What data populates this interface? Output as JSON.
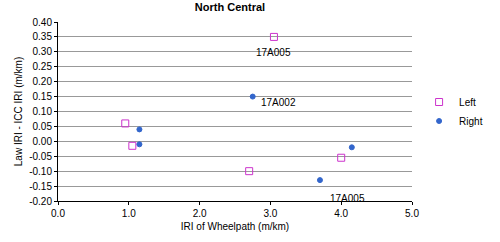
{
  "chart_data": {
    "type": "scatter",
    "title": "North Central",
    "x_label": "IRI of Wheelpath (m/km)",
    "y_label": "Law IRI - ICC IRI (m/km)",
    "xlim": [
      0,
      5
    ],
    "xticks": [
      {
        "value": 0,
        "label": "0.0"
      },
      {
        "value": 1,
        "label": "1.0"
      },
      {
        "value": 2,
        "label": "2.0"
      },
      {
        "value": 3,
        "label": "3.0"
      },
      {
        "value": 4,
        "label": "4.0"
      },
      {
        "value": 5,
        "label": "5.0"
      }
    ],
    "ylim": [
      -0.2,
      0.4
    ],
    "yticks": [
      {
        "value": -0.2,
        "label": "-0.20"
      },
      {
        "value": -0.15,
        "label": "-0.15"
      },
      {
        "value": -0.1,
        "label": "-0.10"
      },
      {
        "value": -0.05,
        "label": "-0.05"
      },
      {
        "value": 0,
        "label": "0.00"
      },
      {
        "value": 0.05,
        "label": "0.05"
      },
      {
        "value": 0.1,
        "label": "0.10"
      },
      {
        "value": 0.15,
        "label": "0.15"
      },
      {
        "value": 0.2,
        "label": "0.20"
      },
      {
        "value": 0.25,
        "label": "0.25"
      },
      {
        "value": 0.3,
        "label": "0.30"
      },
      {
        "value": 0.35,
        "label": "0.35"
      },
      {
        "value": 0.4,
        "label": "0.40"
      }
    ],
    "grid": true,
    "legend": "right",
    "series": [
      {
        "name": "Left",
        "color": "#cc33cc",
        "marker": "square-open",
        "x": [
          0.95,
          1.05,
          3.05,
          2.7,
          4.0
        ],
        "values": [
          0.06,
          -0.015,
          0.35,
          -0.1,
          -0.055
        ]
      },
      {
        "name": "Right",
        "color": "#3366cc",
        "marker": "circle",
        "x": [
          1.15,
          1.15,
          2.75,
          4.15,
          3.7
        ],
        "values": [
          0.04,
          -0.01,
          0.15,
          -0.02,
          -0.13
        ]
      }
    ],
    "annotations": [
      {
        "text": "17A005",
        "x": 3.05,
        "y": 0.35
      },
      {
        "text": "17A002",
        "x": 2.75,
        "y": 0.15
      },
      {
        "text": "17A005",
        "x": 3.7,
        "y": -0.13
      }
    ]
  }
}
